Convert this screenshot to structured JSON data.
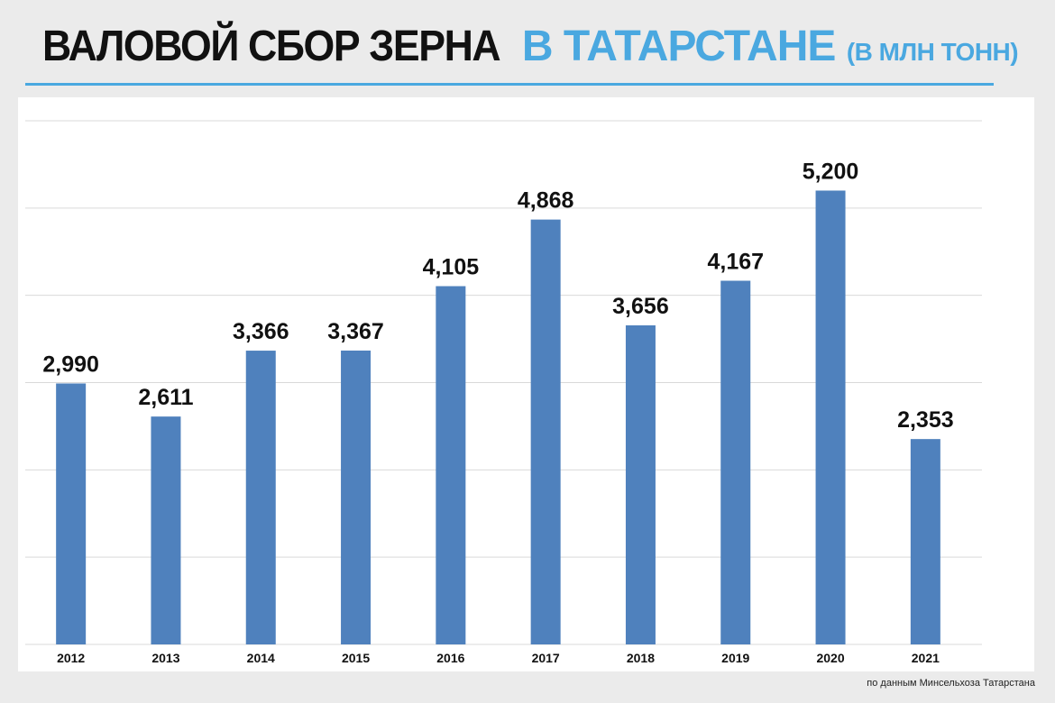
{
  "title": {
    "part1": "ВАЛОВОЙ СБОР ЗЕРНА",
    "part2": "В ТАТАРСТАНЕ",
    "part3": "(В МЛН ТОНН)"
  },
  "source": "по данным Минсельхоза Татарстана",
  "colors": {
    "bar": "#4f81bd",
    "accent": "#4aa8e0",
    "grid": "#d9d9d9"
  },
  "chart_data": {
    "type": "bar",
    "categories": [
      "2012",
      "2013",
      "2014",
      "2015",
      "2016",
      "2017",
      "2018",
      "2019",
      "2020",
      "2021"
    ],
    "values": [
      2.99,
      2.611,
      3.366,
      3.367,
      4.105,
      4.868,
      3.656,
      4.167,
      5.2,
      2.353
    ],
    "value_labels": [
      "2,990",
      "2,611",
      "3,366",
      "3,367",
      "4,105",
      "4,868",
      "3,656",
      "4,167",
      "5,200",
      "2,353"
    ],
    "ylim": [
      0,
      6
    ],
    "grid": true,
    "legend": "none"
  }
}
